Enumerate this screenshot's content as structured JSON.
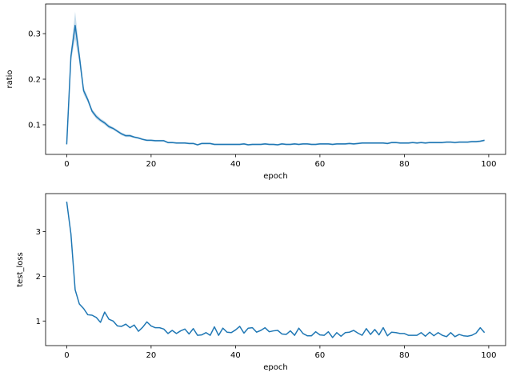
{
  "chart_data": [
    {
      "type": "line",
      "xlabel": "epoch",
      "ylabel": "ratio",
      "xlim": [
        -5,
        104
      ],
      "ylim": [
        0.035,
        0.365
      ],
      "xticks": [
        0,
        20,
        40,
        60,
        80,
        100
      ],
      "yticks": [
        0.1,
        0.2,
        0.3
      ],
      "ytick_labels": [
        "0.1",
        "0.2",
        "0.3"
      ],
      "color": "#1f77b4",
      "series": [
        {
          "x": [
            0,
            1,
            2,
            3,
            4,
            5,
            6,
            7,
            8,
            9,
            10,
            11,
            12,
            13,
            14,
            15,
            16,
            17,
            18,
            19,
            20,
            21,
            22,
            23,
            24,
            25,
            26,
            27,
            28,
            29,
            30,
            31,
            32,
            33,
            34,
            35,
            36,
            37,
            38,
            39,
            40,
            41,
            42,
            43,
            44,
            45,
            46,
            47,
            48,
            49,
            50,
            51,
            52,
            53,
            54,
            55,
            56,
            57,
            58,
            59,
            60,
            61,
            62,
            63,
            64,
            65,
            66,
            67,
            68,
            69,
            70,
            71,
            72,
            73,
            74,
            75,
            76,
            77,
            78,
            79,
            80,
            81,
            82,
            83,
            84,
            85,
            86,
            87,
            88,
            89,
            90,
            91,
            92,
            93,
            94,
            95,
            96,
            97,
            98,
            99
          ],
          "values": [
            0.057,
            0.25,
            0.318,
            0.25,
            0.175,
            0.155,
            0.13,
            0.118,
            0.11,
            0.104,
            0.096,
            0.092,
            0.086,
            0.08,
            0.076,
            0.076,
            0.073,
            0.071,
            0.068,
            0.066,
            0.066,
            0.065,
            0.065,
            0.065,
            0.061,
            0.061,
            0.06,
            0.06,
            0.06,
            0.059,
            0.059,
            0.056,
            0.059,
            0.059,
            0.059,
            0.057,
            0.057,
            0.057,
            0.057,
            0.057,
            0.057,
            0.057,
            0.058,
            0.056,
            0.057,
            0.057,
            0.057,
            0.058,
            0.057,
            0.057,
            0.056,
            0.058,
            0.057,
            0.057,
            0.058,
            0.057,
            0.058,
            0.058,
            0.057,
            0.057,
            0.058,
            0.058,
            0.058,
            0.057,
            0.058,
            0.058,
            0.058,
            0.059,
            0.058,
            0.059,
            0.06,
            0.06,
            0.06,
            0.06,
            0.06,
            0.06,
            0.059,
            0.061,
            0.061,
            0.06,
            0.06,
            0.06,
            0.061,
            0.06,
            0.061,
            0.06,
            0.061,
            0.061,
            0.061,
            0.061,
            0.062,
            0.062,
            0.061,
            0.062,
            0.062,
            0.062,
            0.063,
            0.063,
            0.064,
            0.066
          ],
          "band_halfwidth": [
            0.002,
            0.012,
            0.03,
            0.015,
            0.008,
            0.006,
            0.005,
            0.005,
            0.004,
            0.004,
            0.004,
            0.003,
            0.003,
            0.003,
            0.003,
            0.003,
            0.002,
            0.002,
            0.002,
            0.002,
            0.002,
            0.002,
            0.002,
            0.002,
            0.002,
            0.002,
            0.002,
            0.002,
            0.002,
            0.002,
            0.002,
            0.002,
            0.002,
            0.002,
            0.002,
            0.002,
            0.002,
            0.002,
            0.002,
            0.002,
            0.002,
            0.002,
            0.002,
            0.002,
            0.002,
            0.002,
            0.002,
            0.002,
            0.002,
            0.002,
            0.002,
            0.002,
            0.002,
            0.002,
            0.002,
            0.002,
            0.002,
            0.002,
            0.002,
            0.002,
            0.002,
            0.002,
            0.002,
            0.002,
            0.002,
            0.002,
            0.002,
            0.002,
            0.002,
            0.002,
            0.002,
            0.002,
            0.002,
            0.002,
            0.002,
            0.002,
            0.002,
            0.002,
            0.002,
            0.002,
            0.002,
            0.002,
            0.002,
            0.002,
            0.002,
            0.002,
            0.002,
            0.002,
            0.002,
            0.002,
            0.002,
            0.002,
            0.002,
            0.002,
            0.002,
            0.002,
            0.002,
            0.002,
            0.002,
            0.002
          ]
        }
      ]
    },
    {
      "type": "line",
      "xlabel": "epoch",
      "ylabel": "test_loss",
      "xlim": [
        -5,
        104
      ],
      "ylim": [
        0.45,
        3.85
      ],
      "xticks": [
        0,
        20,
        40,
        60,
        80,
        100
      ],
      "yticks": [
        1,
        2,
        3
      ],
      "ytick_labels": [
        "1",
        "2",
        "3"
      ],
      "color": "#1f77b4",
      "series": [
        {
          "x": [
            0,
            1,
            2,
            3,
            4,
            5,
            6,
            7,
            8,
            9,
            10,
            11,
            12,
            13,
            14,
            15,
            16,
            17,
            18,
            19,
            20,
            21,
            22,
            23,
            24,
            25,
            26,
            27,
            28,
            29,
            30,
            31,
            32,
            33,
            34,
            35,
            36,
            37,
            38,
            39,
            40,
            41,
            42,
            43,
            44,
            45,
            46,
            47,
            48,
            49,
            50,
            51,
            52,
            53,
            54,
            55,
            56,
            57,
            58,
            59,
            60,
            61,
            62,
            63,
            64,
            65,
            66,
            67,
            68,
            69,
            70,
            71,
            72,
            73,
            74,
            75,
            76,
            77,
            78,
            79,
            80,
            81,
            82,
            83,
            84,
            85,
            86,
            87,
            88,
            89,
            90,
            91,
            92,
            93,
            94,
            95,
            96,
            97,
            98,
            99
          ],
          "values": [
            3.67,
            2.95,
            1.7,
            1.38,
            1.28,
            1.14,
            1.13,
            1.08,
            0.97,
            1.2,
            1.04,
            1.0,
            0.89,
            0.88,
            0.93,
            0.85,
            0.91,
            0.77,
            0.86,
            0.98,
            0.89,
            0.85,
            0.85,
            0.82,
            0.72,
            0.79,
            0.72,
            0.78,
            0.82,
            0.71,
            0.83,
            0.68,
            0.69,
            0.74,
            0.68,
            0.87,
            0.68,
            0.84,
            0.75,
            0.74,
            0.8,
            0.88,
            0.73,
            0.84,
            0.85,
            0.75,
            0.79,
            0.85,
            0.76,
            0.78,
            0.79,
            0.71,
            0.7,
            0.78,
            0.68,
            0.84,
            0.72,
            0.67,
            0.67,
            0.76,
            0.69,
            0.68,
            0.76,
            0.63,
            0.74,
            0.66,
            0.74,
            0.75,
            0.79,
            0.73,
            0.68,
            0.83,
            0.7,
            0.81,
            0.69,
            0.85,
            0.67,
            0.75,
            0.74,
            0.72,
            0.72,
            0.68,
            0.68,
            0.68,
            0.74,
            0.66,
            0.75,
            0.67,
            0.74,
            0.68,
            0.65,
            0.74,
            0.65,
            0.7,
            0.67,
            0.66,
            0.68,
            0.73,
            0.85,
            0.74
          ]
        }
      ]
    }
  ]
}
